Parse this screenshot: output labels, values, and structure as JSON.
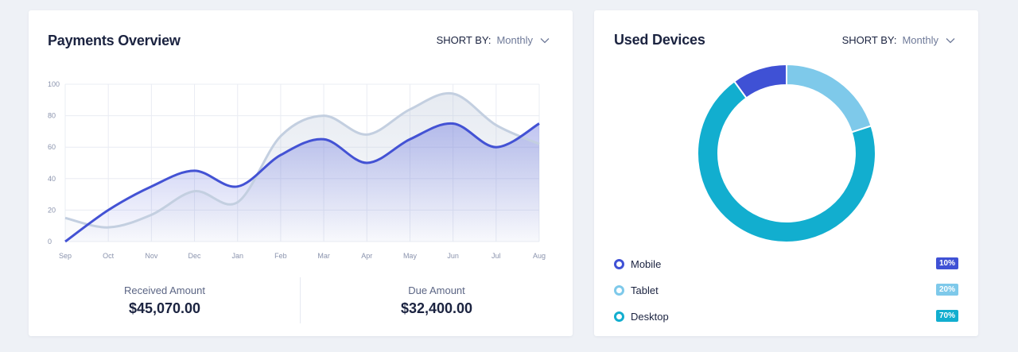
{
  "payments": {
    "title": "Payments Overview",
    "sort_label": "SHORT BY:",
    "sort_value": "Monthly",
    "received_label": "Received Amount",
    "received_value": "$45,070.00",
    "due_label": "Due Amount",
    "due_value": "$32,400.00"
  },
  "devices": {
    "title": "Used Devices",
    "sort_label": "SHORT BY:",
    "sort_value": "Monthly",
    "items": [
      {
        "label": "Mobile",
        "badge": "10%",
        "color": "#3f51d5"
      },
      {
        "label": "Tablet",
        "badge": "20%",
        "color": "#7ec9ea"
      },
      {
        "label": "Desktop",
        "badge": "70%",
        "color": "#12aecf"
      }
    ]
  },
  "chart_data": [
    {
      "type": "area",
      "title": "Payments Overview",
      "categories": [
        "Sep",
        "Oct",
        "Nov",
        "Dec",
        "Jan",
        "Feb",
        "Mar",
        "Apr",
        "May",
        "Jun",
        "Jul",
        "Aug"
      ],
      "series": [
        {
          "values": [
            0,
            20,
            35,
            45,
            35,
            55,
            65,
            50,
            65,
            75,
            60,
            75
          ],
          "color": "#4352d4"
        },
        {
          "values": [
            15,
            9,
            17,
            32,
            25,
            67,
            80,
            68,
            84,
            94,
            74,
            62
          ],
          "color": "#c3cfe0"
        }
      ],
      "y_ticks": [
        0,
        20,
        40,
        60,
        80,
        100
      ],
      "ylim": [
        0,
        100
      ],
      "grid": true
    },
    {
      "type": "pie",
      "title": "Used Devices",
      "categories": [
        "Mobile",
        "Tablet",
        "Desktop"
      ],
      "values": [
        10,
        20,
        70
      ],
      "colors": [
        "#3f51d5",
        "#7ec9ea",
        "#12aecf"
      ],
      "hole": true
    }
  ]
}
